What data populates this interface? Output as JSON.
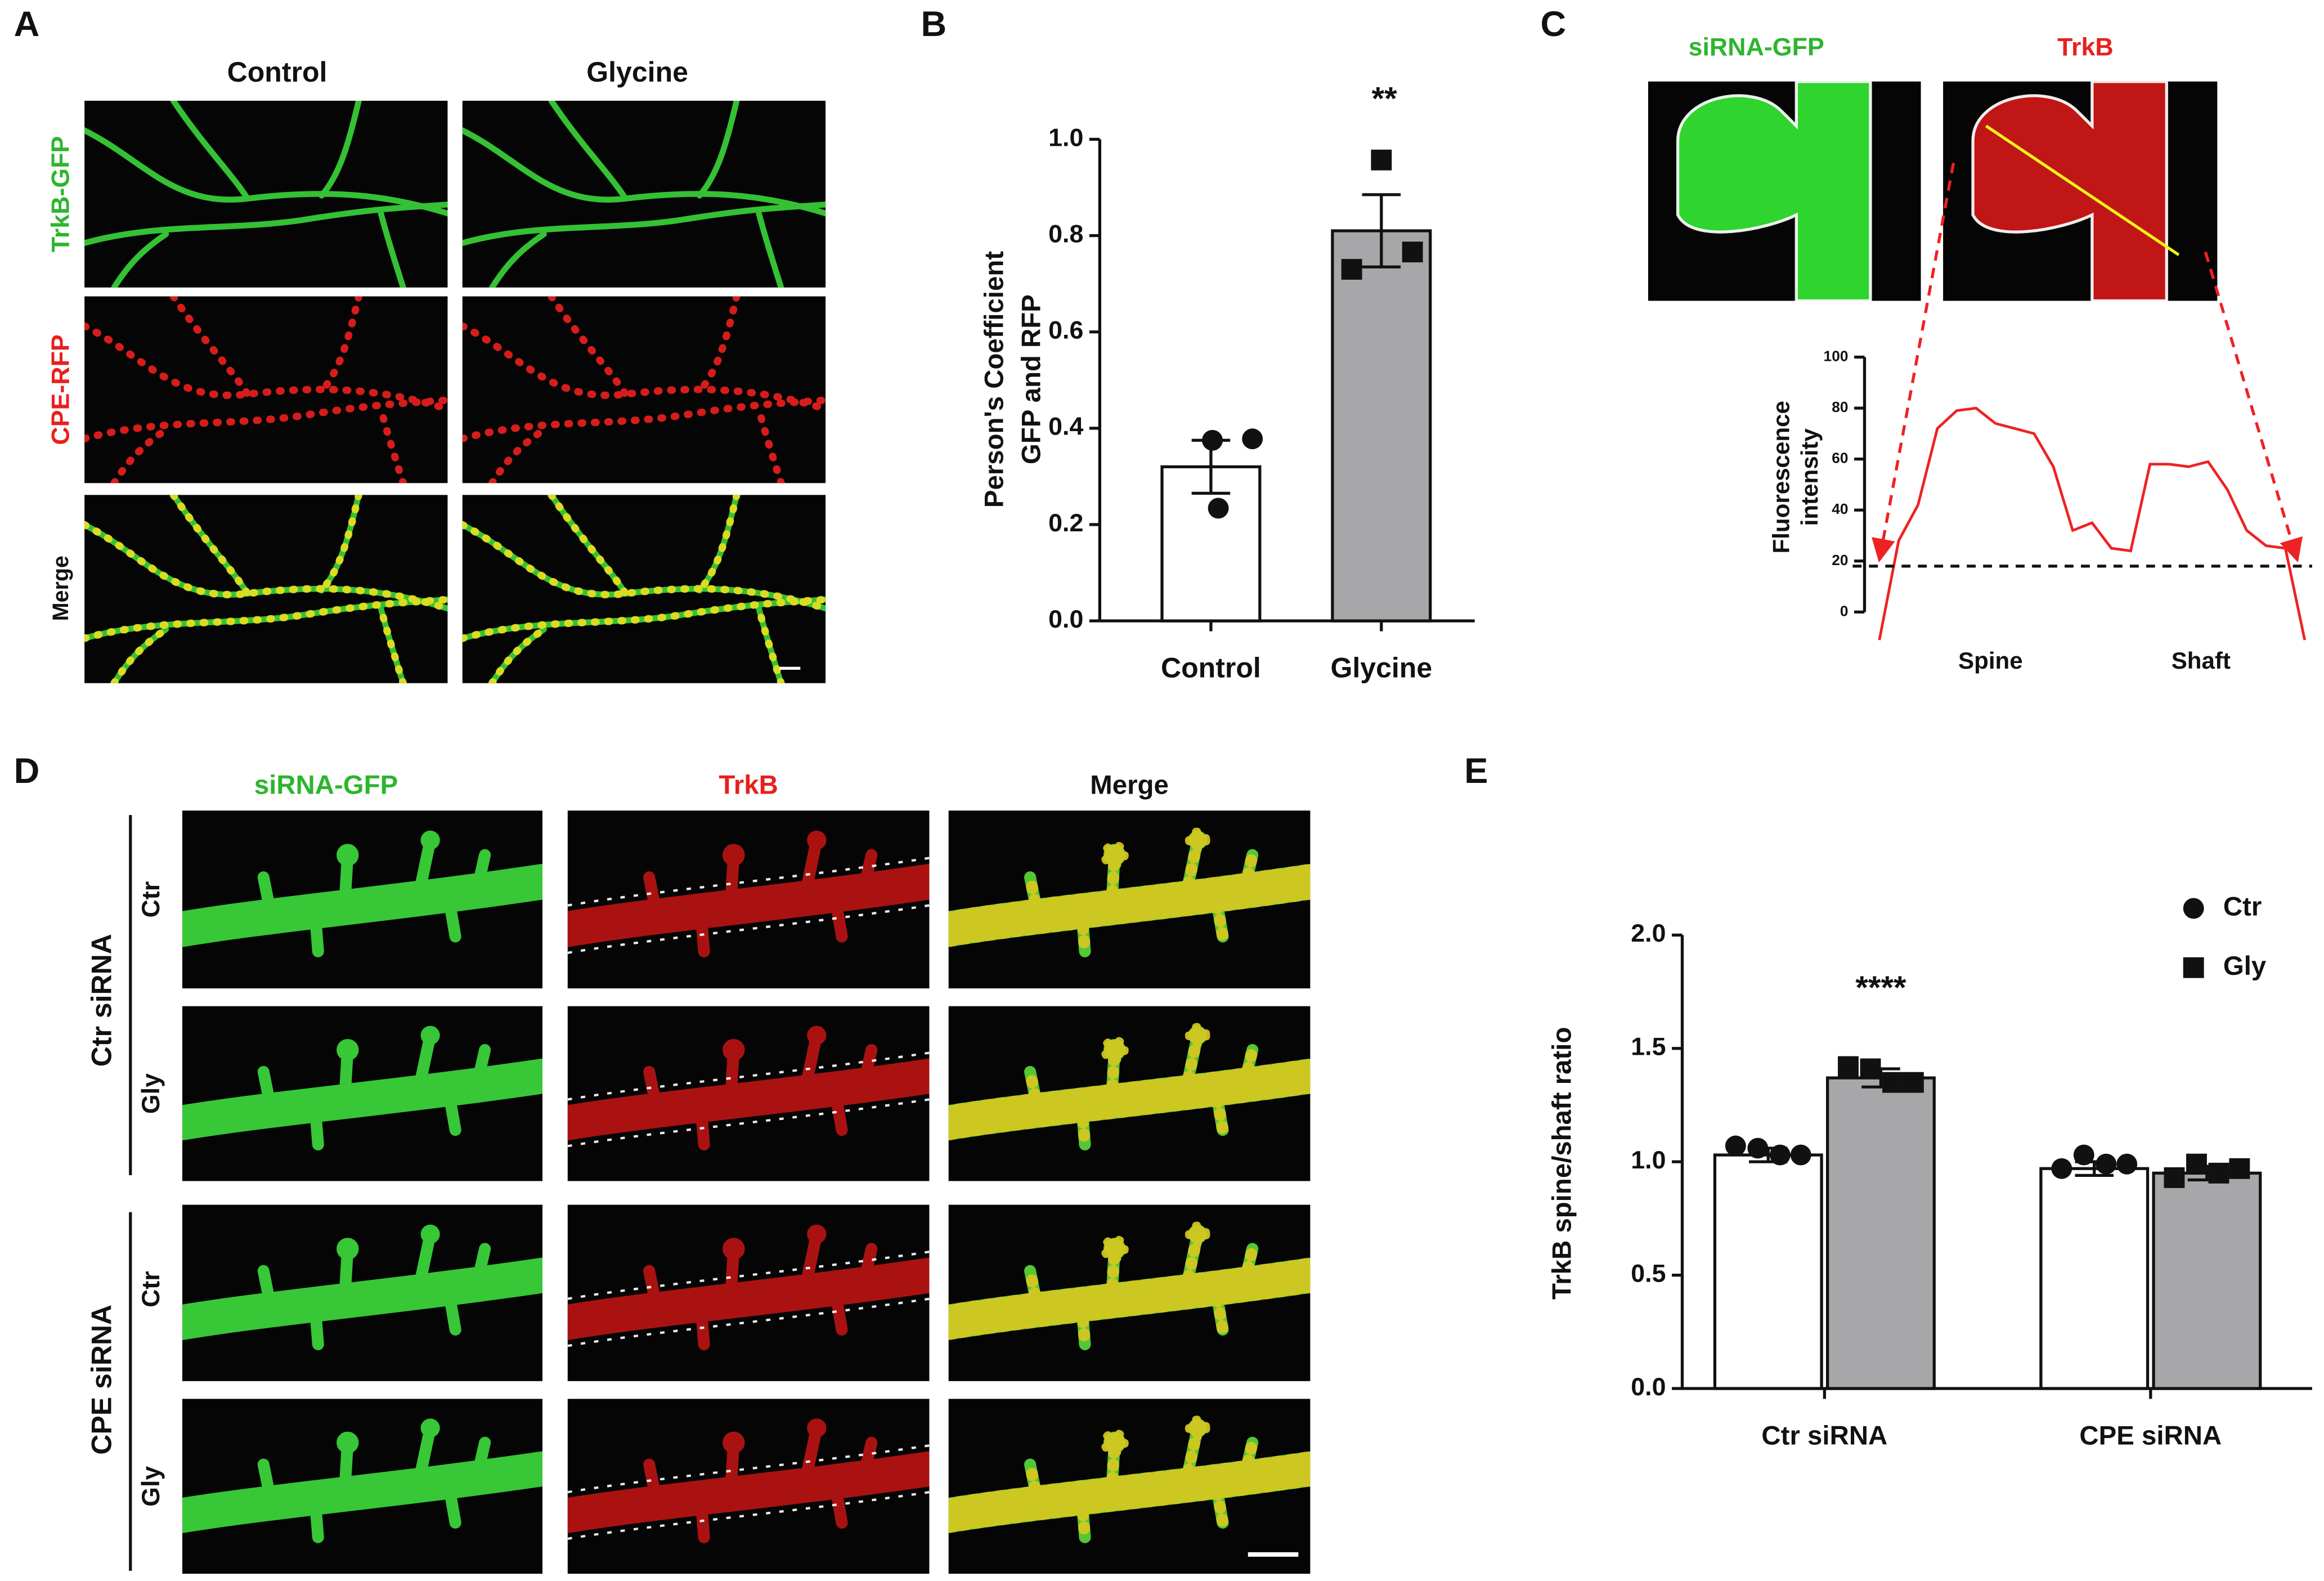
{
  "panel_labels": [
    "A",
    "B",
    "C",
    "D",
    "E"
  ],
  "panel_a": {
    "columns": [
      "Control",
      "Glycine"
    ],
    "rows": [
      "TrkB-GFP",
      "CPE-RFP",
      "Merge"
    ]
  },
  "panel_c": {
    "images": [
      "siRNA-GFP",
      "TrkB"
    ]
  },
  "panel_d": {
    "columns": [
      "siRNA-GFP",
      "TrkB",
      "Merge"
    ],
    "groups": [
      {
        "name": "Ctr siRNA",
        "rows": [
          "Ctr",
          "Gly"
        ]
      },
      {
        "name": "CPE siRNA",
        "rows": [
          "Ctr",
          "Gly"
        ]
      }
    ]
  },
  "chart_data": [
    {
      "type": "bar",
      "ylabel": [
        "Person's Coefficient",
        "GFP and RFP"
      ],
      "categories": [
        "Control",
        "Glycine"
      ],
      "values": [
        0.32,
        0.81
      ],
      "errors": [
        0.055,
        0.075
      ],
      "points": [
        [
          0.375,
          0.378,
          0.234
        ],
        [
          0.957,
          0.73,
          0.766
        ]
      ],
      "colors": [
        "#ffffff",
        "#a7a7a9"
      ],
      "markers": [
        "circle",
        "square"
      ],
      "ylim": [
        0,
        1
      ],
      "yticks": [
        {
          "value": 0,
          "label": "0.0"
        },
        0.2,
        0.4,
        0.6,
        0.8,
        {
          "value": 1,
          "label": "1.0"
        }
      ],
      "annotations": [
        "**"
      ]
    },
    {
      "type": "line",
      "ylabel": [
        "Fluorescence",
        "intensity"
      ],
      "color": "#ee2222",
      "values": [
        -11,
        28,
        42,
        72,
        79,
        80,
        74,
        72,
        70,
        57,
        32,
        35,
        25,
        24,
        58,
        58,
        57,
        59,
        48,
        32,
        26,
        25,
        -11
      ],
      "ylim": [
        0,
        100
      ],
      "yticks": [
        0,
        20,
        40,
        60,
        80,
        100
      ],
      "reference_line": 18,
      "annotations": [
        "Spine",
        "Shaft"
      ]
    },
    {
      "type": "bar",
      "ylabel": "TrkB spine/shaft ratio",
      "categories": [
        "Ctr siRNA",
        "CPE siRNA"
      ],
      "series": [
        {
          "name": "Ctr",
          "color": "#ffffff",
          "marker": "circle",
          "values": [
            1.03,
            0.97
          ],
          "errors": [
            0.03,
            0.03
          ],
          "points": [
            [
              1.07,
              1.06,
              1.03,
              1.03
            ],
            [
              0.97,
              1.03,
              0.99,
              0.99
            ]
          ]
        },
        {
          "name": "Gly",
          "color": "#a7a7a9",
          "marker": "square",
          "values": [
            1.37,
            0.95
          ],
          "errors": [
            0.04,
            0.03
          ],
          "points": [
            [
              1.42,
              1.41,
              1.35,
              1.35
            ],
            [
              0.93,
              0.99,
              0.95,
              0.97
            ]
          ]
        }
      ],
      "ylim": [
        0,
        2
      ],
      "yticks": [
        {
          "value": 0,
          "label": "0.0"
        },
        0.5,
        {
          "value": 1,
          "label": "1.0"
        },
        1.5,
        {
          "value": 2,
          "label": "2.0"
        }
      ],
      "annotations": [
        "****"
      ]
    }
  ]
}
